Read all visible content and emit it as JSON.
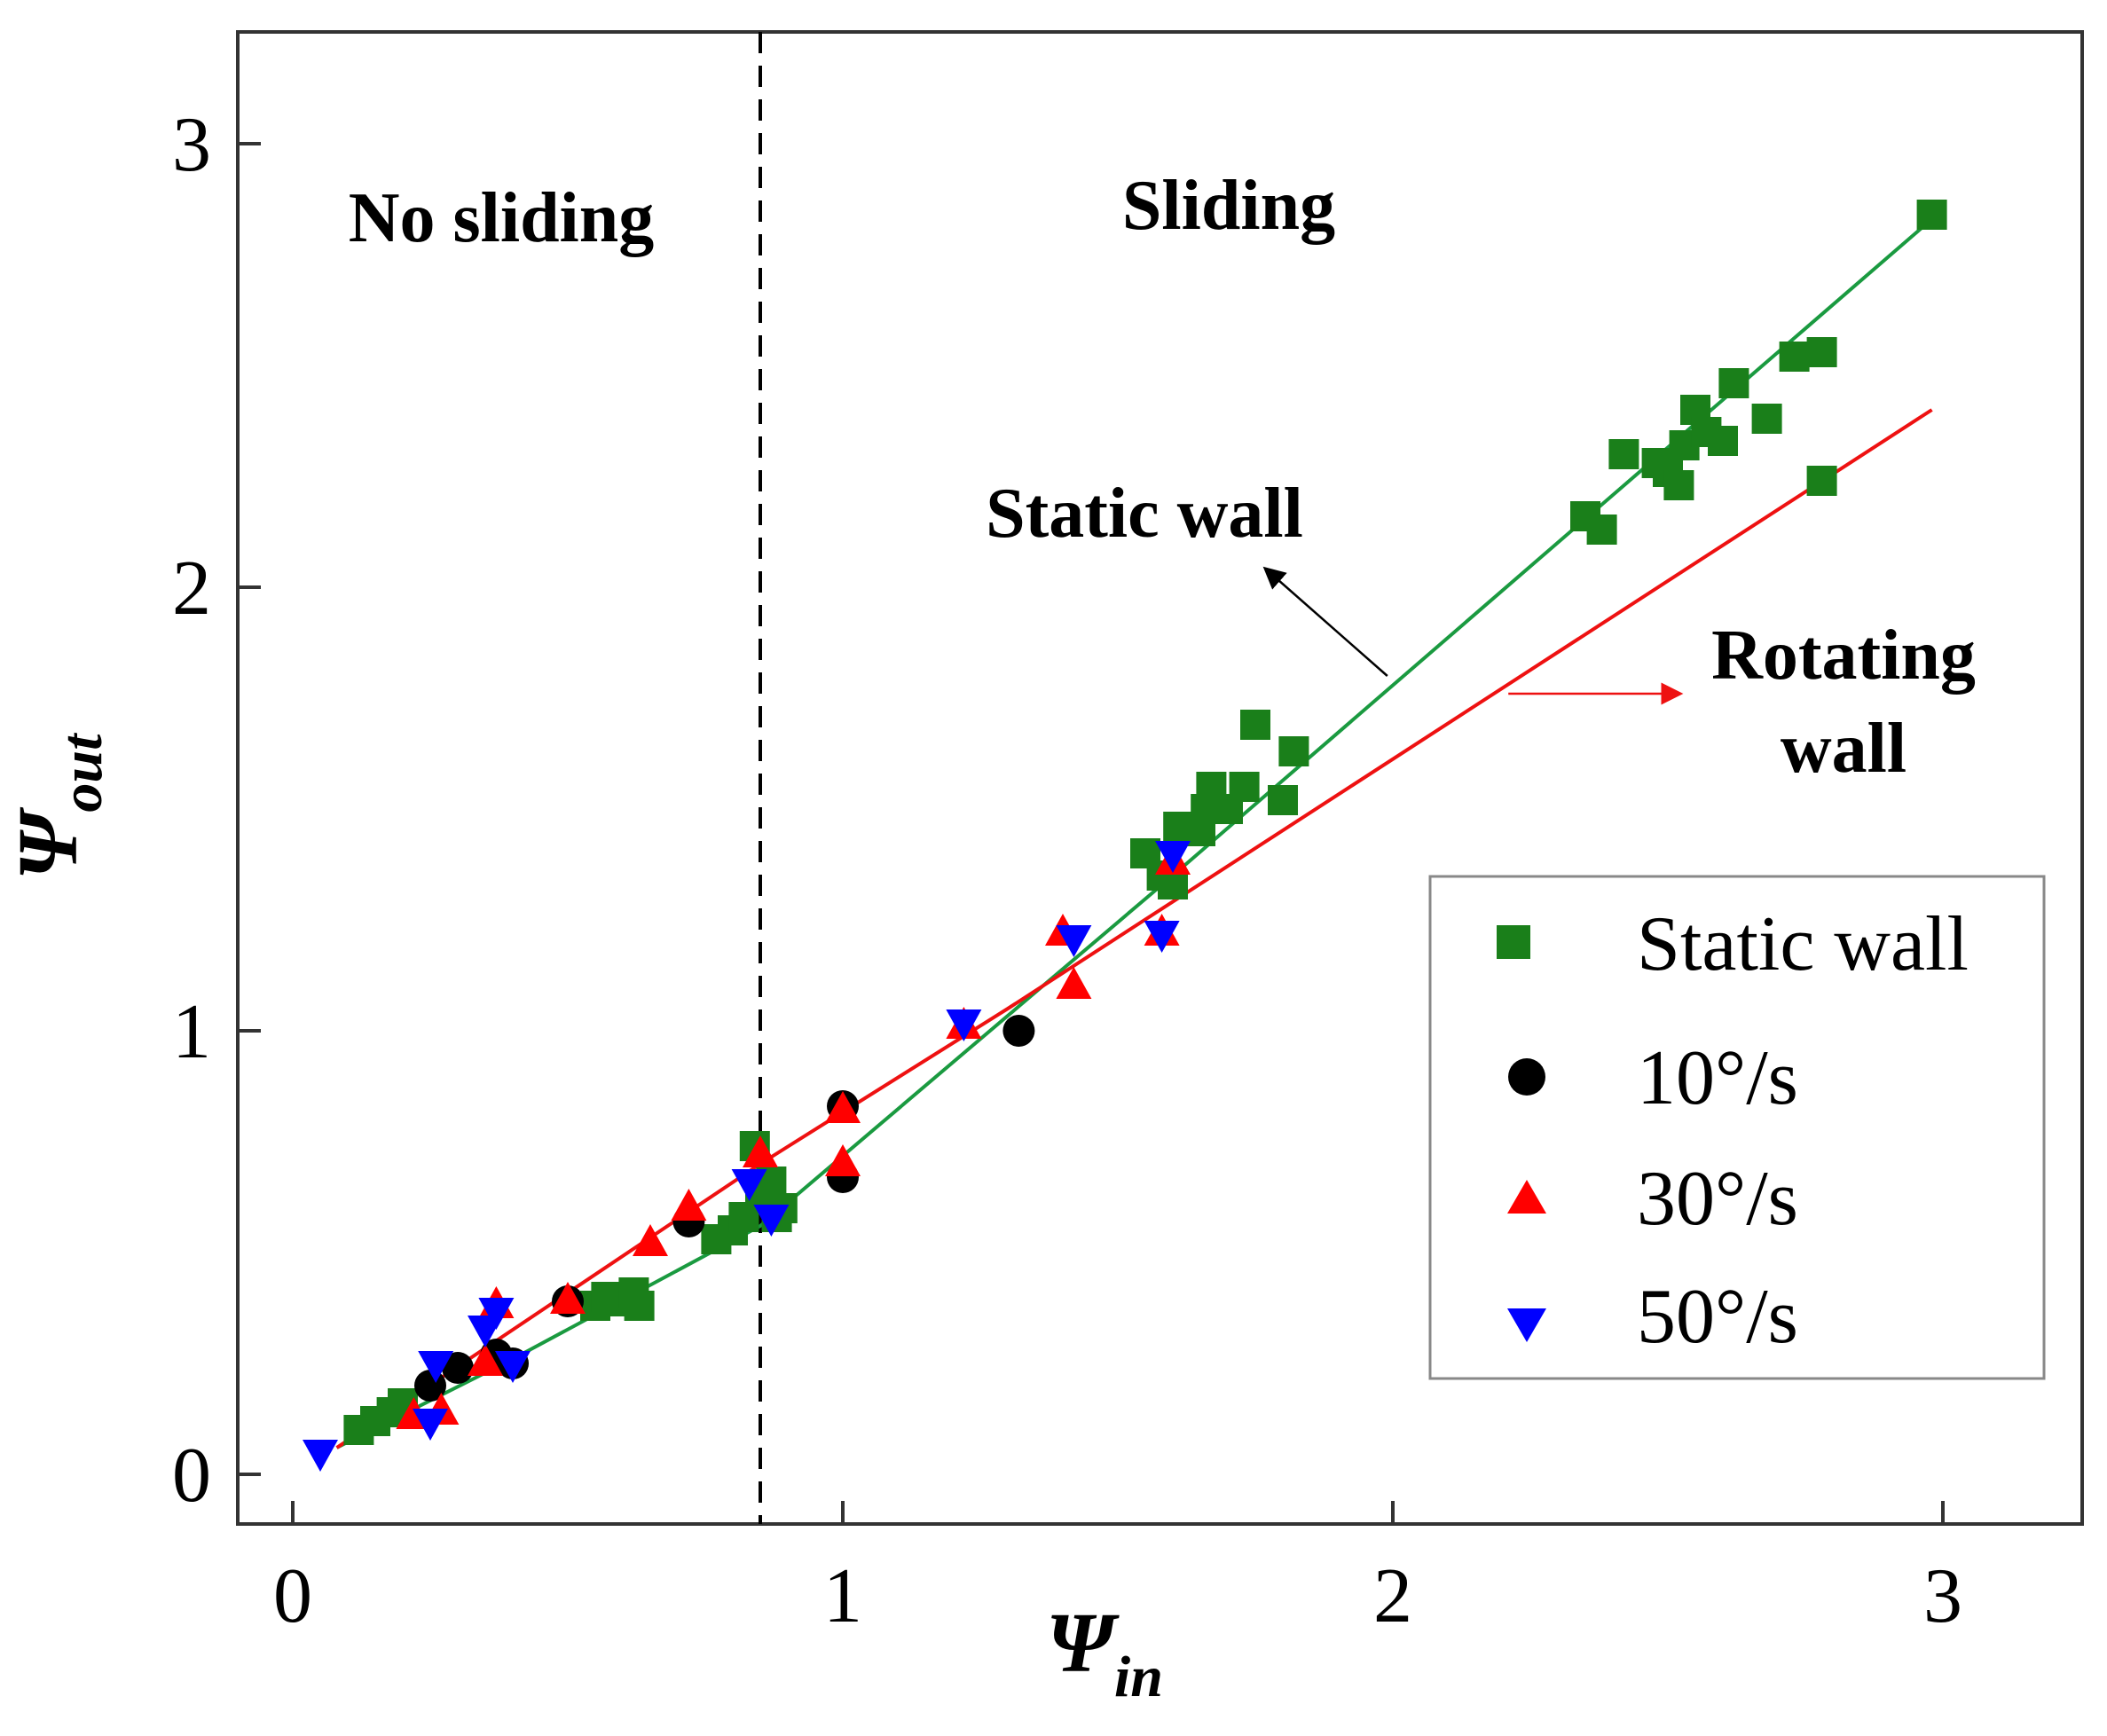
{
  "chart_data": {
    "type": "scatter",
    "xlabel": {
      "main": "Ψ",
      "sub": "in"
    },
    "ylabel": {
      "main": "Ψ",
      "sub": "out"
    },
    "xlim": [
      -0.1,
      3.25
    ],
    "ylim": [
      -0.1,
      3.25
    ],
    "xticks": [
      0,
      1,
      2,
      3
    ],
    "yticks": [
      0,
      1,
      2,
      3
    ],
    "xtick_labels": [
      "0",
      "1",
      "2",
      "3"
    ],
    "ytick_labels": [
      "0",
      "1",
      "2",
      "3"
    ],
    "grid": false,
    "divider_x": 0.85,
    "region_labels": {
      "left": "No sliding",
      "right": "Sliding"
    },
    "series": [
      {
        "name": "Static wall",
        "marker": "square",
        "color": "#1a7f1a",
        "points": [
          [
            0.12,
            0.1
          ],
          [
            0.15,
            0.12
          ],
          [
            0.18,
            0.14
          ],
          [
            0.2,
            0.16
          ],
          [
            0.55,
            0.38
          ],
          [
            0.57,
            0.4
          ],
          [
            0.6,
            0.39
          ],
          [
            0.62,
            0.41
          ],
          [
            0.63,
            0.38
          ],
          [
            0.77,
            0.53
          ],
          [
            0.8,
            0.55
          ],
          [
            0.82,
            0.58
          ],
          [
            0.84,
            0.74
          ],
          [
            0.85,
            0.62
          ],
          [
            0.87,
            0.66
          ],
          [
            0.88,
            0.58
          ],
          [
            0.89,
            0.6
          ],
          [
            1.55,
            1.4
          ],
          [
            1.58,
            1.35
          ],
          [
            1.6,
            1.33
          ],
          [
            1.61,
            1.46
          ],
          [
            1.65,
            1.45
          ],
          [
            1.66,
            1.5
          ],
          [
            1.67,
            1.55
          ],
          [
            1.7,
            1.5
          ],
          [
            1.73,
            1.55
          ],
          [
            1.75,
            1.69
          ],
          [
            1.8,
            1.52
          ],
          [
            1.82,
            1.63
          ],
          [
            2.35,
            2.16
          ],
          [
            2.38,
            2.13
          ],
          [
            2.42,
            2.3
          ],
          [
            2.48,
            2.28
          ],
          [
            2.5,
            2.26
          ],
          [
            2.52,
            2.23
          ],
          [
            2.53,
            2.32
          ],
          [
            2.55,
            2.4
          ],
          [
            2.57,
            2.35
          ],
          [
            2.6,
            2.33
          ],
          [
            2.62,
            2.46
          ],
          [
            2.68,
            2.38
          ],
          [
            2.73,
            2.52
          ],
          [
            2.78,
            2.53
          ],
          [
            2.78,
            2.24
          ],
          [
            2.98,
            2.84
          ]
        ]
      },
      {
        "name": "10°/s",
        "marker": "circle",
        "color": "#000000",
        "points": [
          [
            0.25,
            0.2
          ],
          [
            0.3,
            0.24
          ],
          [
            0.37,
            0.27
          ],
          [
            0.4,
            0.25
          ],
          [
            0.5,
            0.39
          ],
          [
            0.72,
            0.57
          ],
          [
            1.0,
            0.83
          ],
          [
            1.0,
            0.67
          ],
          [
            1.32,
            1.0
          ]
        ]
      },
      {
        "name": "30°/s",
        "marker": "triangle-up",
        "color": "#ff0000",
        "points": [
          [
            0.22,
            0.13
          ],
          [
            0.27,
            0.14
          ],
          [
            0.35,
            0.25
          ],
          [
            0.37,
            0.38
          ],
          [
            0.5,
            0.39
          ],
          [
            0.65,
            0.52
          ],
          [
            0.72,
            0.6
          ],
          [
            0.85,
            0.72
          ],
          [
            1.0,
            0.82
          ],
          [
            1.0,
            0.7
          ],
          [
            1.22,
            1.01
          ],
          [
            1.4,
            1.22
          ],
          [
            1.42,
            1.1
          ],
          [
            1.58,
            1.22
          ],
          [
            1.6,
            1.38
          ]
        ]
      },
      {
        "name": "50°/s",
        "marker": "triangle-down",
        "color": "#0000ff",
        "points": [
          [
            0.05,
            0.05
          ],
          [
            0.25,
            0.12
          ],
          [
            0.26,
            0.25
          ],
          [
            0.35,
            0.33
          ],
          [
            0.37,
            0.37
          ],
          [
            0.4,
            0.25
          ],
          [
            0.83,
            0.66
          ],
          [
            0.87,
            0.58
          ],
          [
            1.22,
            1.02
          ],
          [
            1.42,
            1.21
          ],
          [
            1.58,
            1.22
          ],
          [
            1.6,
            1.4
          ]
        ]
      }
    ],
    "fit_lines": [
      {
        "name": "Static wall",
        "color": "#1a9a40",
        "segments": [
          [
            [
              0.08,
              0.06
            ],
            [
              0.4,
              0.26
            ],
            [
              0.85,
              0.56
            ],
            [
              1.6,
              1.35
            ],
            [
              2.98,
              2.83
            ]
          ]
        ]
      },
      {
        "name": "Rotating wall",
        "color": "#ee1111",
        "segments": [
          [
            [
              0.08,
              0.06
            ],
            [
              0.85,
              0.7
            ],
            [
              1.3,
              1.05
            ],
            [
              2.98,
              2.4
            ]
          ]
        ]
      }
    ],
    "annotations": [
      {
        "text": "Static wall",
        "arrow_from": [
          1.99,
          1.8
        ],
        "arrow_to": [
          1.77,
          2.04
        ]
      },
      {
        "text": "Rotating wall",
        "lines": [
          "Rotating",
          "wall"
        ],
        "arrow_from": [
          2.21,
          1.76
        ],
        "arrow_to": [
          2.52,
          1.76
        ]
      }
    ],
    "legend": {
      "position": "right",
      "entries": [
        "Static wall",
        "10°/s",
        "30°/s",
        "50°/s"
      ]
    }
  }
}
